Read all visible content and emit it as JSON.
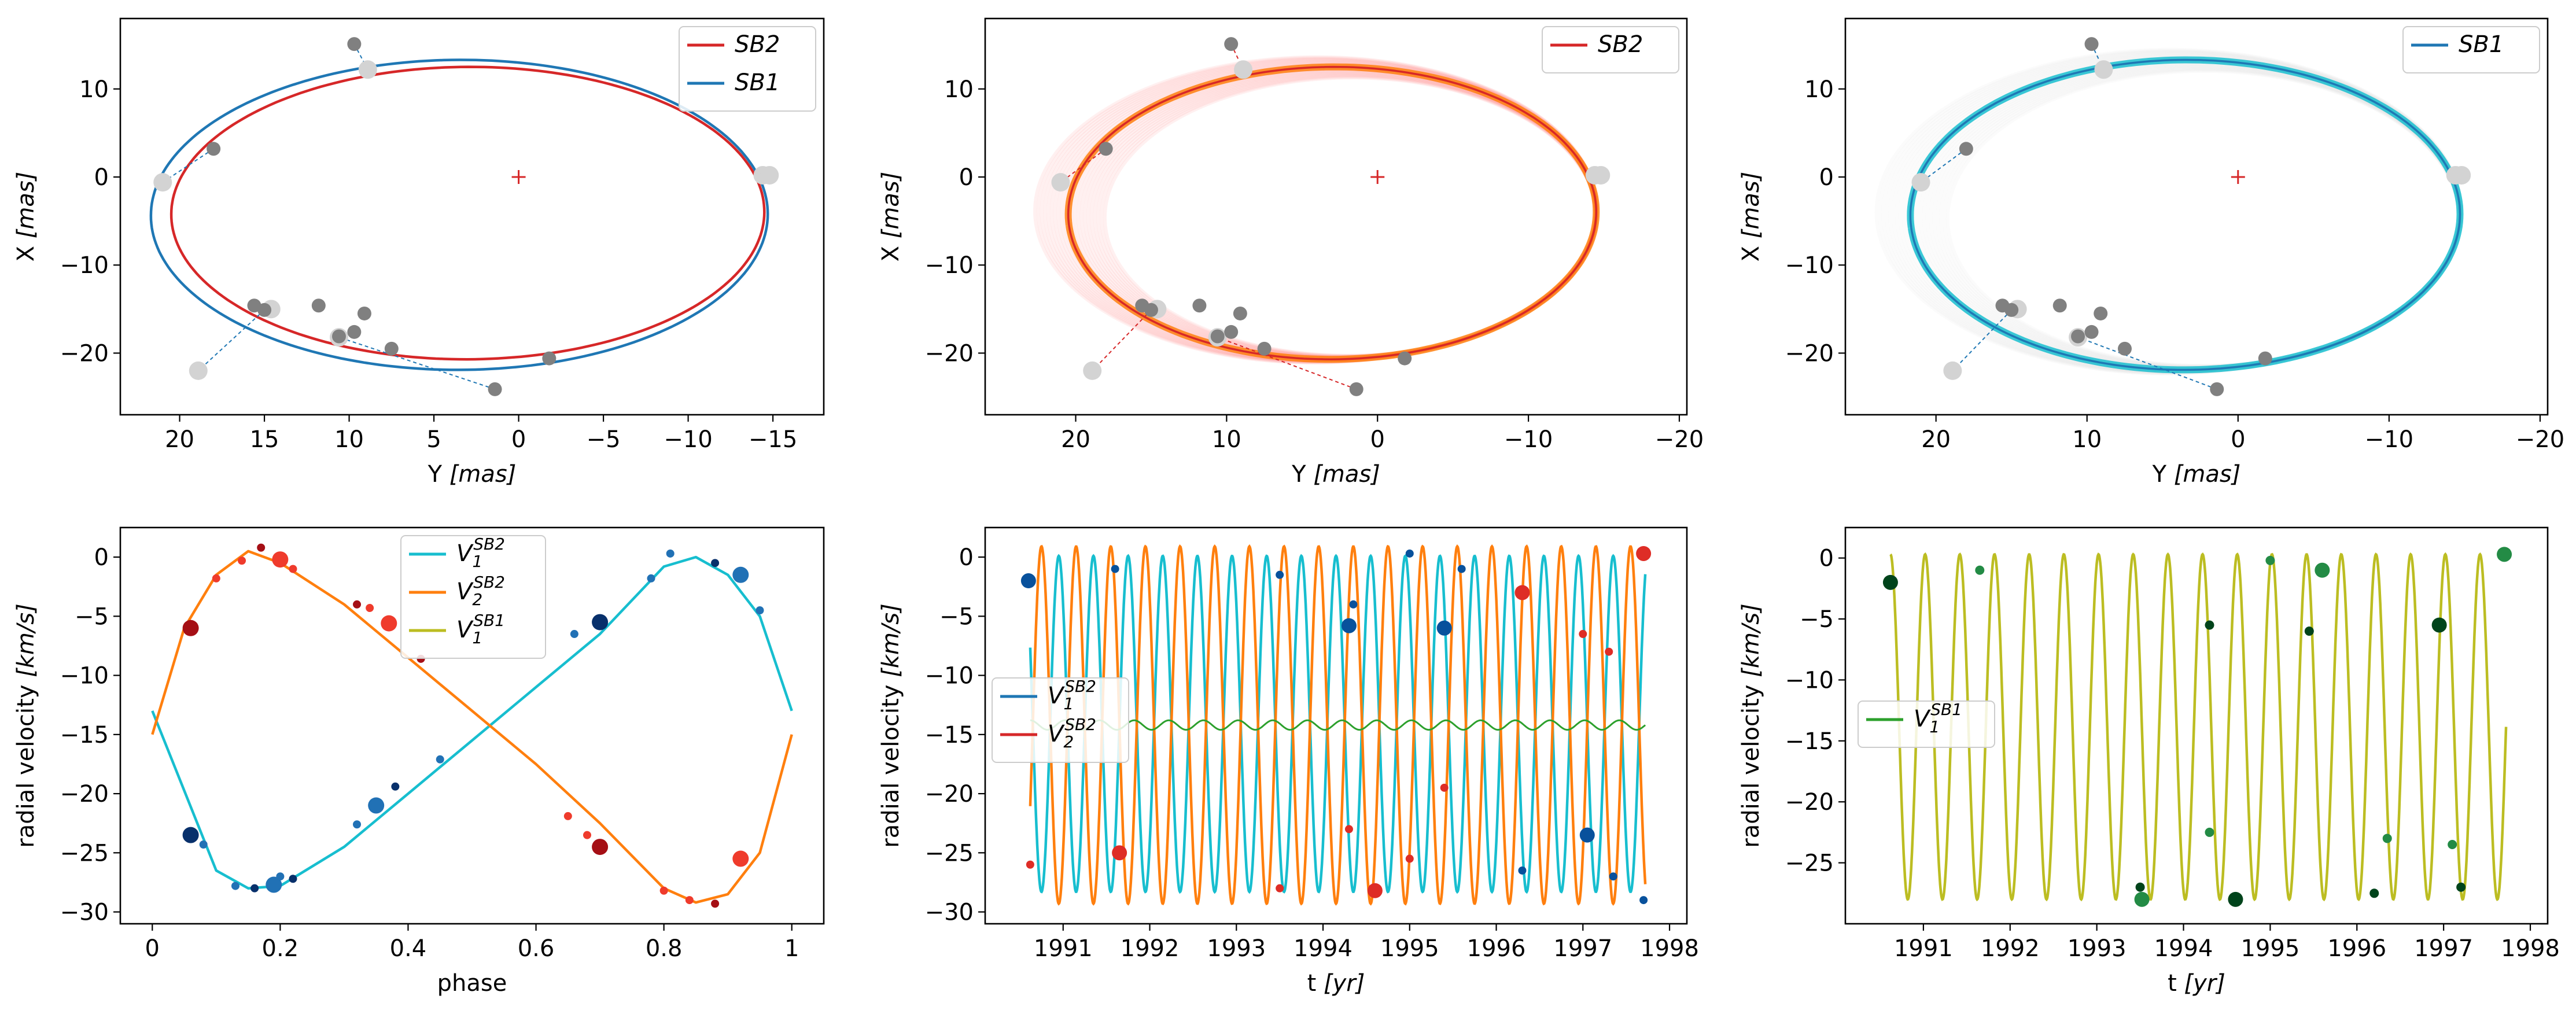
{
  "chart_data": [
    {
      "type": "line",
      "panel": "orbit-SB2-SB1",
      "xlabel": "Y [mas]",
      "ylabel": "X [mas]",
      "xlim": [
        23.5,
        -18.0
      ],
      "ylim": [
        -27.0,
        18.0
      ],
      "xticks": [
        20,
        15,
        10,
        5,
        0,
        -5,
        -10,
        -15
      ],
      "yticks": [
        10,
        0,
        -10,
        -20
      ],
      "legend": [
        "SB2",
        "SB1"
      ],
      "legend_position": "upper right",
      "center_marker": [
        0,
        0
      ],
      "series": [
        {
          "name": "SB2",
          "color": "#d62728",
          "ellipse": {
            "cx": 3.0,
            "cy": -4.1,
            "a": 17.5,
            "b": 16.6,
            "x_left": 21.0,
            "x_right": -14.8
          }
        },
        {
          "name": "SB1",
          "color": "#1f77b4",
          "ellipse": {
            "cx": 3.5,
            "cy": -4.3,
            "a": 18.2,
            "b": 17.6,
            "x_left": 21.5,
            "x_right": -15.5
          }
        }
      ],
      "observations": [
        [
          9.7,
          15.1
        ],
        [
          18.0,
          3.2
        ],
        [
          11.8,
          -14.6
        ],
        [
          9.1,
          -15.5
        ],
        [
          15.6,
          -14.6
        ],
        [
          15.0,
          -15.1
        ],
        [
          10.6,
          -18.1
        ],
        [
          9.7,
          -17.6
        ],
        [
          7.5,
          -19.5
        ],
        [
          1.4,
          -24.1
        ],
        [
          -1.8,
          -20.6
        ]
      ],
      "model_points": [
        [
          8.9,
          12.2
        ],
        [
          21.0,
          -0.6
        ],
        [
          14.6,
          -15.0
        ],
        [
          10.6,
          -18.2
        ],
        [
          18.9,
          -22.0
        ],
        [
          -14.4,
          0.2
        ],
        [
          -14.8,
          0.2
        ]
      ]
    },
    {
      "type": "line",
      "panel": "orbit-SB2-posterior",
      "xlabel": "Y [mas]",
      "ylabel": "X [mas]",
      "xlim": [
        26.0,
        -20.5
      ],
      "ylim": [
        -27.0,
        18.0
      ],
      "xticks": [
        20,
        10,
        0,
        -10,
        -20
      ],
      "yticks": [
        10,
        0,
        -10,
        -20
      ],
      "legend": [
        "SB2"
      ],
      "legend_position": "upper right",
      "series": [
        {
          "name": "SB2",
          "color": "#d62728",
          "ellipse": {
            "cx": 3.0,
            "cy": -4.1,
            "a": 17.5,
            "b": 16.6
          }
        }
      ]
    },
    {
      "type": "line",
      "panel": "orbit-SB1-posterior",
      "xlabel": "Y [mas]",
      "ylabel": "X [mas]",
      "xlim": [
        26.0,
        -20.5
      ],
      "ylim": [
        -27.0,
        18.0
      ],
      "xticks": [
        20,
        10,
        0,
        -10,
        -20
      ],
      "yticks": [
        10,
        0,
        -10,
        -20
      ],
      "legend": [
        "SB1"
      ],
      "legend_position": "upper right",
      "series": [
        {
          "name": "SB1",
          "color": "#1f77b4",
          "ellipse": {
            "cx": 3.5,
            "cy": -4.3,
            "a": 18.2,
            "b": 17.6
          }
        }
      ]
    },
    {
      "type": "line",
      "panel": "rv-phase",
      "xlabel": "phase",
      "ylabel": "radial velocity [km/s]",
      "xlim": [
        -0.05,
        1.05
      ],
      "ylim": [
        -31.0,
        2.5
      ],
      "xticks": [
        0.0,
        0.2,
        0.4,
        0.6,
        0.8,
        1.0
      ],
      "yticks": [
        0,
        -5,
        -10,
        -15,
        -20,
        -25,
        -30
      ],
      "legend": [
        "V1 SB2",
        "V2 SB2",
        "V1 SB1"
      ],
      "legend_position": "upper center",
      "series": [
        {
          "name": "V1 SB2",
          "color": "#17becf",
          "x": [
            0.0,
            0.1,
            0.15,
            0.2,
            0.3,
            0.4,
            0.5,
            0.6,
            0.7,
            0.8,
            0.85,
            0.9,
            0.95,
            1.0
          ],
          "y": [
            -13,
            -26.5,
            -28,
            -27.8,
            -24.5,
            -20,
            -15.5,
            -11,
            -6.5,
            -0.8,
            0,
            -1.5,
            -5,
            -13
          ]
        },
        {
          "name": "V2 SB2",
          "color": "#ff7f0e",
          "x": [
            0.0,
            0.05,
            0.1,
            0.15,
            0.2,
            0.3,
            0.4,
            0.5,
            0.6,
            0.7,
            0.8,
            0.85,
            0.9,
            0.95,
            1.0
          ],
          "y": [
            -15,
            -6,
            -1.5,
            0.5,
            -0.5,
            -4,
            -8.5,
            -13,
            -17.5,
            -22.5,
            -28,
            -29.2,
            -28.5,
            -25,
            -15
          ]
        }
      ],
      "observations": {
        "V1": [
          [
            0.06,
            -23.5
          ],
          [
            0.08,
            -24.3
          ],
          [
            0.13,
            -27.8
          ],
          [
            0.16,
            -28.0
          ],
          [
            0.19,
            -27.7
          ],
          [
            0.2,
            -27
          ],
          [
            0.22,
            -27.2
          ],
          [
            0.32,
            -22.6
          ],
          [
            0.35,
            -21
          ],
          [
            0.38,
            -19.4
          ],
          [
            0.45,
            -17.1
          ],
          [
            0.66,
            -6.5
          ],
          [
            0.7,
            -5.5
          ],
          [
            0.78,
            -1.8
          ],
          [
            0.81,
            0.3
          ],
          [
            0.88,
            -0.5
          ],
          [
            0.92,
            -1.5
          ],
          [
            0.95,
            -4.5
          ]
        ],
        "V2": [
          [
            0.06,
            -6
          ],
          [
            0.1,
            -1.8
          ],
          [
            0.14,
            -0.3
          ],
          [
            0.17,
            0.8
          ],
          [
            0.2,
            -0.2
          ],
          [
            0.22,
            -1
          ],
          [
            0.32,
            -4
          ],
          [
            0.34,
            -4.3
          ],
          [
            0.37,
            -5.6
          ],
          [
            0.42,
            -8.6
          ],
          [
            0.65,
            -21.9
          ],
          [
            0.68,
            -23.5
          ],
          [
            0.7,
            -24.5
          ],
          [
            0.8,
            -28.2
          ],
          [
            0.84,
            -29
          ],
          [
            0.88,
            -29.3
          ],
          [
            0.92,
            -25.5
          ]
        ]
      }
    },
    {
      "type": "line",
      "panel": "rv-time-SB2",
      "xlabel": "t [yr]",
      "ylabel": "radial velocity [km/s]",
      "xlim": [
        1990.1,
        1998.2
      ],
      "ylim": [
        -31.0,
        2.5
      ],
      "xticks": [
        1991,
        1992,
        1993,
        1994,
        1995,
        1996,
        1997,
        1998
      ],
      "yticks": [
        0,
        -5,
        -10,
        -15,
        -20,
        -25,
        -30
      ],
      "legend": [
        "V1 SB2",
        "V2 SB2"
      ],
      "legend_position": "center left",
      "series": [
        {
          "name": "V1 SB2",
          "color": "#17becf",
          "t0": 1990.62,
          "t1": 1997.72,
          "period_yr": 0.4,
          "min": -28.3,
          "max": 0.1
        },
        {
          "name": "V2 SB2",
          "color": "#ff7f0e",
          "t0": 1990.62,
          "t1": 1997.72,
          "period_yr": 0.4,
          "min": -29.3,
          "max": 0.9
        }
      ]
    },
    {
      "type": "line",
      "panel": "rv-time-SB1",
      "xlabel": "t [yr]",
      "ylabel": "radial velocity [km/s]",
      "xlim": [
        1990.1,
        1998.2
      ],
      "ylim": [
        -30.0,
        2.5
      ],
      "xticks": [
        1991,
        1992,
        1993,
        1994,
        1995,
        1996,
        1997,
        1998
      ],
      "yticks": [
        0,
        -5,
        -10,
        -15,
        -20,
        -25
      ],
      "legend": [
        "V1 SB1"
      ],
      "legend_position": "center left",
      "series": [
        {
          "name": "V1 SB1",
          "color": "#bcbd22",
          "t0": 1990.62,
          "t1": 1997.72,
          "period_yr": 0.4,
          "min": -28.0,
          "max": 0.3
        }
      ]
    }
  ],
  "labels": {
    "p1": {
      "xlabel_main": "Y ",
      "xlabel_unit": "[mas]",
      "ylabel_main": "X ",
      "ylabel_unit": "[mas]",
      "leg": [
        "SB2",
        "SB1"
      ]
    },
    "p2": {
      "xlabel_main": "Y ",
      "xlabel_unit": "[mas]",
      "ylabel_main": "X ",
      "ylabel_unit": "[mas]",
      "leg": [
        "SB2"
      ]
    },
    "p3": {
      "xlabel_main": "Y ",
      "xlabel_unit": "[mas]",
      "ylabel_main": "X ",
      "ylabel_unit": "[mas]",
      "leg": [
        "SB1"
      ]
    },
    "p4": {
      "xlabel": "phase",
      "ylabel_main": "radial velocity ",
      "ylabel_unit": "[km/s]",
      "leg": [
        [
          "V",
          "1",
          "SB2"
        ],
        [
          "V",
          "2",
          "SB2"
        ],
        [
          "V",
          "1",
          "SB1"
        ]
      ]
    },
    "p5": {
      "xlabel_main": "t ",
      "xlabel_unit": "[yr]",
      "ylabel_main": "radial velocity ",
      "ylabel_unit": "[km/s]",
      "leg": [
        [
          "V",
          "1",
          "SB2"
        ],
        [
          "V",
          "2",
          "SB2"
        ]
      ]
    },
    "p6": {
      "xlabel_main": "t ",
      "xlabel_unit": "[yr]",
      "ylabel_main": "radial velocity ",
      "ylabel_unit": "[km/s]",
      "leg": [
        [
          "V",
          "1",
          "SB1"
        ]
      ]
    }
  }
}
